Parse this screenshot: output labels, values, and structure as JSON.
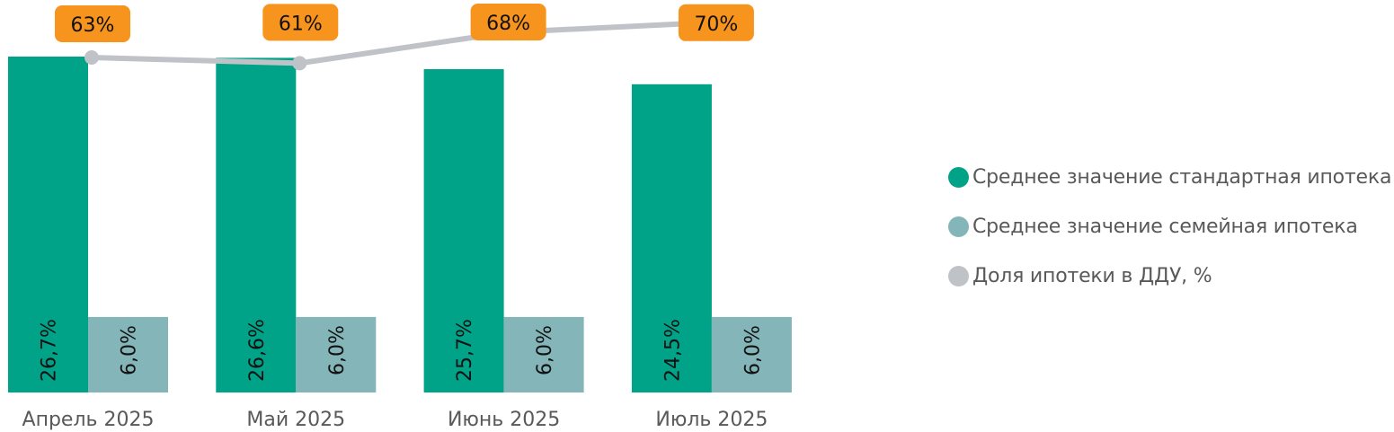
{
  "chart_data": {
    "type": "bar",
    "combo": "clustered bar + line",
    "categories": [
      "Апрель 2025",
      "Май 2025",
      "Июнь 2025",
      "Июль 2025"
    ],
    "series": [
      {
        "name": "Среднее значение стандартная ипотека",
        "type": "bar",
        "color": "#00A388",
        "values": [
          26.7,
          26.6,
          25.7,
          24.5
        ],
        "labels": [
          "26,7%",
          "26,6%",
          "25,7%",
          "24,5%"
        ]
      },
      {
        "name": "Среднее значение семейная ипотека",
        "type": "bar",
        "color": "#84B5B9",
        "values": [
          6.0,
          6.0,
          6.0,
          6.0
        ],
        "labels": [
          "6,0%",
          "6,0%",
          "6,0%",
          "6,0%"
        ]
      },
      {
        "name": "Доля ипотеки в ДДУ, %",
        "type": "line",
        "color": "#BFC3C7",
        "values": [
          63,
          61,
          68,
          70
        ],
        "labels": [
          "63%",
          "61%",
          "68%",
          "70%"
        ]
      }
    ],
    "title": "",
    "xlabel": "",
    "ylabel": "",
    "grid": false,
    "legend_position": "right",
    "data_label_style": {
      "bars": "rotated vertical inside",
      "line": "orange rounded box",
      "label_box_color": "#F7941D"
    }
  },
  "legend": [
    {
      "label": "Среднее значение стандартная ипотека",
      "color": "#00A388"
    },
    {
      "label": "Среднее значение семейная ипотека",
      "color": "#84B5B9"
    },
    {
      "label": "Доля ипотеки в ДДУ, %",
      "color": "#BFC3C7"
    }
  ]
}
